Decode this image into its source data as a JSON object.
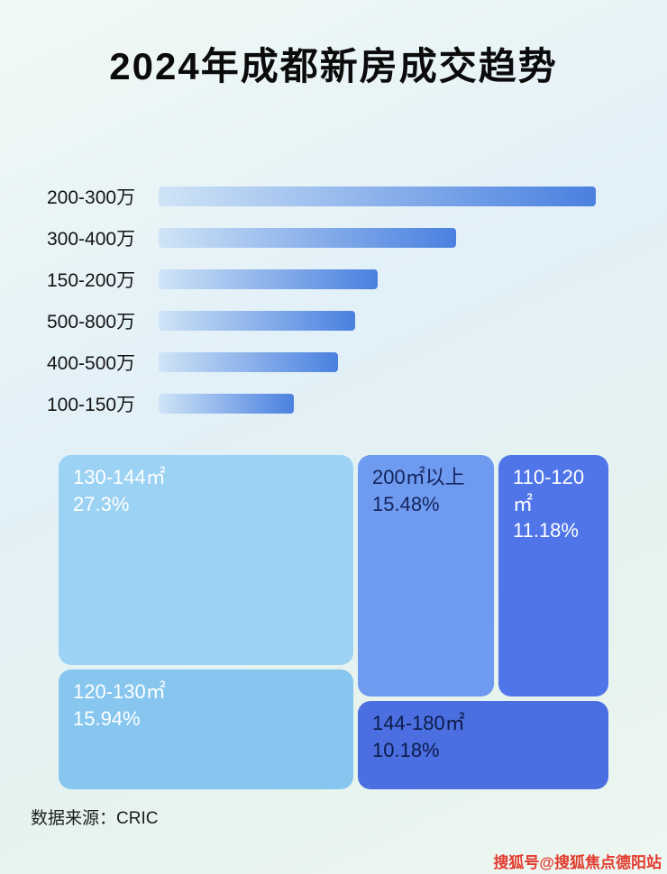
{
  "page": {
    "title": "2024年成都新房成交趋势",
    "source_label": "数据来源：CRIC",
    "watermark": "搜狐号@搜狐焦点德阳站"
  },
  "chart_data": [
    {
      "type": "bar",
      "orientation": "horizontal",
      "categories": [
        "200-300万",
        "300-400万",
        "150-200万",
        "500-800万",
        "400-500万",
        "100-150万"
      ],
      "values": [
        100,
        68,
        50,
        45,
        41,
        31
      ],
      "value_note": "relative bar lengths as % of longest bar; no numeric axis shown in image",
      "xlim": [
        0,
        100
      ],
      "bar_gradient": [
        "#cfe4f6",
        "#4a80e0"
      ],
      "grid": "off",
      "legend": "none"
    },
    {
      "type": "treemap",
      "items": [
        {
          "label": "130-144㎡",
          "value_label": "27.3%",
          "value": 27.3,
          "color": "#9cd2f3",
          "text_color": "#ffffff"
        },
        {
          "label": "200㎡以上",
          "value_label": "15.48%",
          "value": 15.48,
          "color": "#6e9aef",
          "text_color": "#14245e"
        },
        {
          "label": "110-120㎡",
          "value_label": "11.18%",
          "value": 11.18,
          "color": "#4f75e9",
          "text_color": "#ffffff"
        },
        {
          "label": "120-130㎡",
          "value_label": "15.94%",
          "value": 15.94,
          "color": "#87c6ef",
          "text_color": "#ffffff"
        },
        {
          "label": "144-180㎡",
          "value_label": "10.18%",
          "value": 10.18,
          "color": "#4b6fe0",
          "text_color": "#0d1b4a"
        }
      ],
      "legend": "none"
    }
  ]
}
